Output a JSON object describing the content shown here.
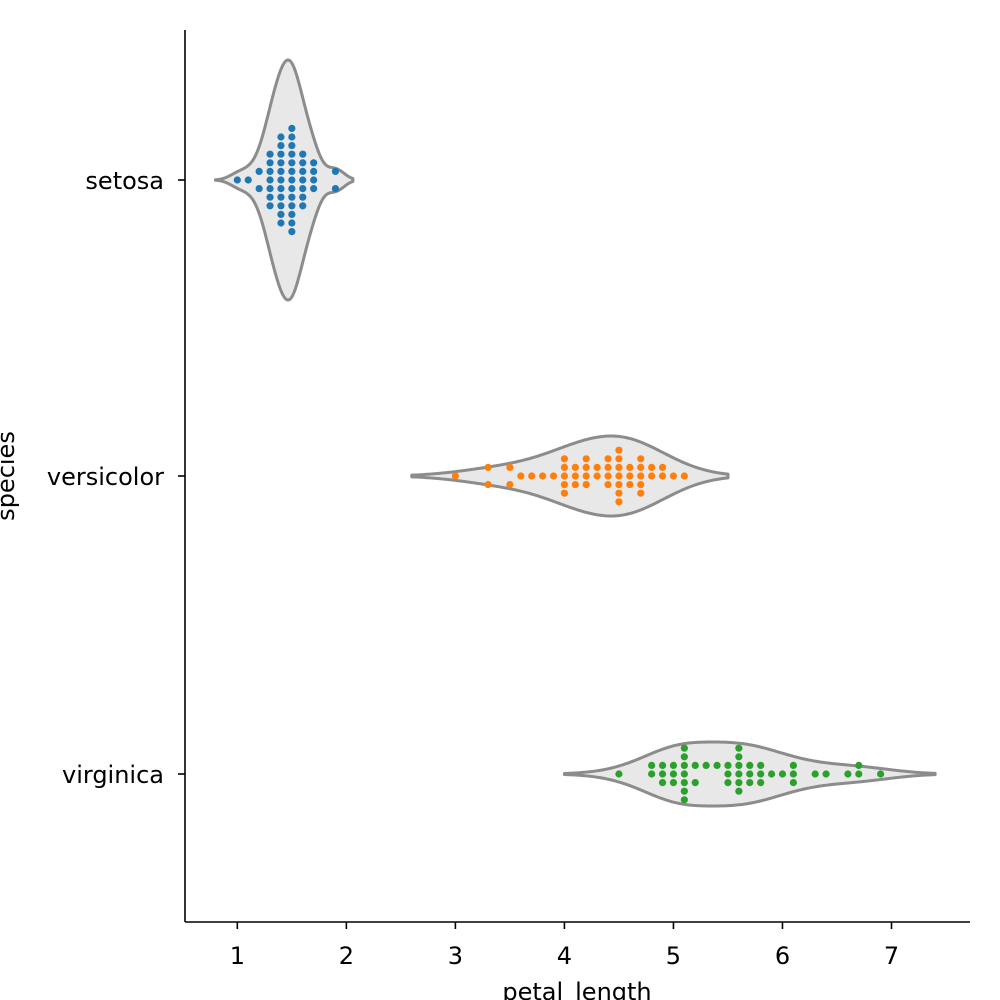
{
  "chart_data": {
    "type": "violin+swarm",
    "orientation": "horizontal",
    "xlabel": "petal_length",
    "ylabel": "species",
    "xlim": [
      0.52,
      7.72
    ],
    "xticks": [
      1,
      2,
      3,
      4,
      5,
      6,
      7
    ],
    "categories": [
      "setosa",
      "versicolor",
      "virginica"
    ],
    "violin_color": "#e8e8e8",
    "violin_edge_color": "#8c8c8c",
    "series": [
      {
        "name": "setosa",
        "color": "#1f77b4",
        "violin_range": [
          0.8,
          2.06
        ],
        "points": [
          [
            1.0,
            0
          ],
          [
            1.1,
            0
          ],
          [
            1.2,
            1
          ],
          [
            1.2,
            -1
          ],
          [
            1.3,
            3
          ],
          [
            1.3,
            2
          ],
          [
            1.3,
            1
          ],
          [
            1.3,
            0
          ],
          [
            1.3,
            -1
          ],
          [
            1.3,
            -2
          ],
          [
            1.3,
            -3
          ],
          [
            1.4,
            5
          ],
          [
            1.4,
            4
          ],
          [
            1.4,
            3
          ],
          [
            1.4,
            2
          ],
          [
            1.4,
            1
          ],
          [
            1.4,
            0
          ],
          [
            1.4,
            -1
          ],
          [
            1.4,
            -2
          ],
          [
            1.4,
            -3
          ],
          [
            1.4,
            -4
          ],
          [
            1.4,
            -5
          ],
          [
            1.5,
            6
          ],
          [
            1.5,
            5
          ],
          [
            1.5,
            4
          ],
          [
            1.5,
            3
          ],
          [
            1.5,
            2
          ],
          [
            1.5,
            1
          ],
          [
            1.5,
            0
          ],
          [
            1.5,
            -1
          ],
          [
            1.5,
            -2
          ],
          [
            1.5,
            -3
          ],
          [
            1.5,
            -4
          ],
          [
            1.5,
            -5
          ],
          [
            1.5,
            -6
          ],
          [
            1.6,
            3
          ],
          [
            1.6,
            2
          ],
          [
            1.6,
            1
          ],
          [
            1.6,
            0
          ],
          [
            1.6,
            -1
          ],
          [
            1.6,
            -2
          ],
          [
            1.6,
            -3
          ],
          [
            1.7,
            2
          ],
          [
            1.7,
            1
          ],
          [
            1.7,
            0
          ],
          [
            1.7,
            -1
          ],
          [
            1.9,
            1
          ],
          [
            1.9,
            -1
          ]
        ]
      },
      {
        "name": "versicolor",
        "color": "#ff7f0e",
        "violin_range": [
          2.6,
          5.5
        ],
        "points": [
          [
            3.0,
            0
          ],
          [
            3.3,
            1
          ],
          [
            3.3,
            -1
          ],
          [
            3.5,
            1
          ],
          [
            3.5,
            -1
          ],
          [
            3.6,
            0
          ],
          [
            3.7,
            0
          ],
          [
            3.8,
            0
          ],
          [
            3.9,
            0
          ],
          [
            4.0,
            2
          ],
          [
            4.0,
            1
          ],
          [
            4.0,
            0
          ],
          [
            4.0,
            -1
          ],
          [
            4.0,
            -2
          ],
          [
            4.1,
            1
          ],
          [
            4.1,
            0
          ],
          [
            4.1,
            -1
          ],
          [
            4.2,
            2
          ],
          [
            4.2,
            1
          ],
          [
            4.2,
            0
          ],
          [
            4.2,
            -1
          ],
          [
            4.3,
            1
          ],
          [
            4.3,
            0
          ],
          [
            4.4,
            2
          ],
          [
            4.4,
            1
          ],
          [
            4.4,
            0
          ],
          [
            4.4,
            -1
          ],
          [
            4.5,
            3
          ],
          [
            4.5,
            2
          ],
          [
            4.5,
            1
          ],
          [
            4.5,
            0
          ],
          [
            4.5,
            -1
          ],
          [
            4.5,
            -2
          ],
          [
            4.5,
            -3
          ],
          [
            4.6,
            1
          ],
          [
            4.6,
            0
          ],
          [
            4.6,
            -1
          ],
          [
            4.7,
            2
          ],
          [
            4.7,
            1
          ],
          [
            4.7,
            0
          ],
          [
            4.7,
            -1
          ],
          [
            4.7,
            -2
          ],
          [
            4.8,
            1
          ],
          [
            4.8,
            0
          ],
          [
            4.9,
            1
          ],
          [
            4.9,
            0
          ],
          [
            5.0,
            0
          ],
          [
            5.1,
            0
          ]
        ]
      },
      {
        "name": "virginica",
        "color": "#2ca02c",
        "violin_range": [
          4.0,
          7.4
        ],
        "points": [
          [
            4.5,
            0
          ],
          [
            4.8,
            1
          ],
          [
            4.8,
            0
          ],
          [
            4.9,
            1
          ],
          [
            4.9,
            0
          ],
          [
            4.9,
            -1
          ],
          [
            5.0,
            1
          ],
          [
            5.0,
            0
          ],
          [
            5.0,
            -1
          ],
          [
            5.1,
            3
          ],
          [
            5.1,
            2
          ],
          [
            5.1,
            1
          ],
          [
            5.1,
            0
          ],
          [
            5.1,
            -1
          ],
          [
            5.1,
            -2
          ],
          [
            5.1,
            -3
          ],
          [
            5.2,
            1
          ],
          [
            5.2,
            -1
          ],
          [
            5.3,
            1
          ],
          [
            5.4,
            1
          ],
          [
            5.5,
            1
          ],
          [
            5.5,
            0
          ],
          [
            5.5,
            -1
          ],
          [
            5.6,
            3
          ],
          [
            5.6,
            2
          ],
          [
            5.6,
            1
          ],
          [
            5.6,
            0
          ],
          [
            5.6,
            -1
          ],
          [
            5.6,
            -2
          ],
          [
            5.7,
            1
          ],
          [
            5.7,
            0
          ],
          [
            5.7,
            -1
          ],
          [
            5.8,
            1
          ],
          [
            5.8,
            0
          ],
          [
            5.8,
            -1
          ],
          [
            5.9,
            0
          ],
          [
            6.0,
            0
          ],
          [
            6.1,
            1
          ],
          [
            6.1,
            0
          ],
          [
            6.1,
            -1
          ],
          [
            6.3,
            0
          ],
          [
            6.4,
            0
          ],
          [
            6.6,
            0
          ],
          [
            6.7,
            1
          ],
          [
            6.7,
            0
          ],
          [
            6.9,
            0
          ]
        ]
      }
    ]
  }
}
